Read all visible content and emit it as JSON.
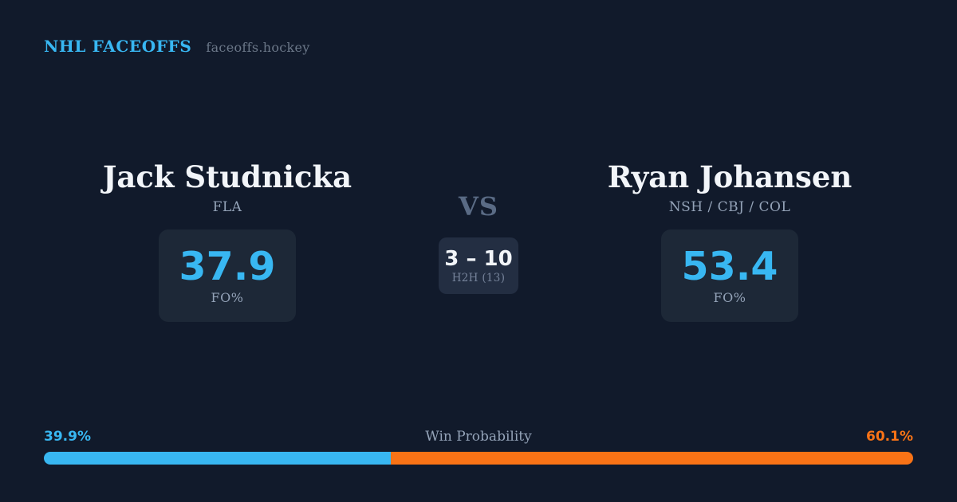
{
  "header": {
    "brand": "NHL FACEOFFS",
    "domain": "faceoffs.hockey"
  },
  "players": [
    {
      "name": "Jack Studnicka",
      "teams": "FLA",
      "fo_value": "37.9",
      "fo_label": "FO%"
    },
    {
      "name": "Ryan Johansen",
      "teams": "NSH / CBJ / COL",
      "fo_value": "53.4",
      "fo_label": "FO%"
    }
  ],
  "matchup": {
    "vs_label": "VS",
    "h2h_score": "3 – 10",
    "h2h_label": "H2H (13)"
  },
  "win_probability": {
    "title": "Win Probability",
    "left_pct_label": "39.9%",
    "right_pct_label": "60.1%",
    "left_value": 39.9,
    "right_value": 60.1,
    "left_color": "#38b7f2",
    "right_color": "#f97316"
  },
  "colors": {
    "background": "#111a2b",
    "panel": "#1d2837",
    "panel_middle": "#232e42",
    "accent_blue": "#38b7f2",
    "accent_orange": "#f97316",
    "text_primary": "#f2f5f9",
    "text_secondary": "#94a3b8",
    "text_muted": "#6b7788",
    "vs_color": "#5a6b85"
  }
}
